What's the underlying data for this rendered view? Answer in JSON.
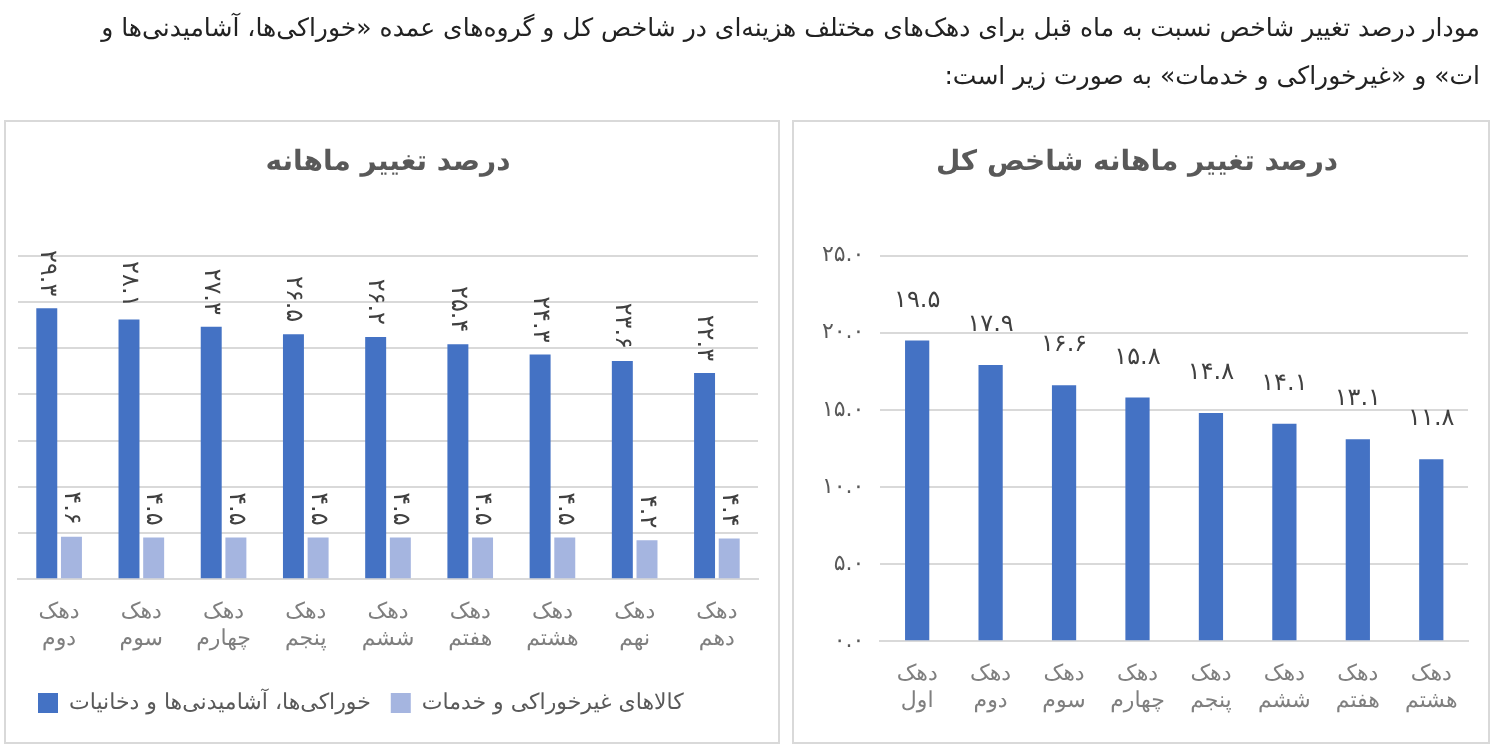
{
  "chart_data": [
    {
      "type": "bar",
      "title": "درصد تغییر ماهانه شاخص کل",
      "annotations": [
        "مودار درصد تغییر شاخص نسبت به ماه قبل برای دهک‌های مختلف هزینه‌ای در شاخص کل و گروه‌های عمده «خوراکی‌ها، آشامیدنی‌ها و",
        "ات» و «غیرخوراکی و خدمات» به صورت زیر است:"
      ],
      "categories": [
        "دهک اول",
        "دهک دوم",
        "دهک سوم",
        "دهک چهارم",
        "دهک پنجم",
        "دهک ششم",
        "دهک هفتم",
        "دهک هشتم"
      ],
      "values": [
        19.5,
        17.9,
        16.6,
        15.8,
        14.8,
        14.1,
        13.1,
        11.8
      ],
      "value_labels": [
        "۱۹.۵",
        "۱۷.۹",
        "۱۶.۶",
        "۱۵.۸",
        "۱۴.۸",
        "۱۴.۱",
        "۱۳.۱",
        "۱۱.۸"
      ],
      "color": "#4472c4",
      "ylim": [
        0,
        25
      ],
      "yticks": [
        {
          "value": 0,
          "label": "۰.۰"
        },
        {
          "value": 5,
          "label": "۵.۰"
        },
        {
          "value": 10,
          "label": "۱۰.۰"
        },
        {
          "value": 15,
          "label": "۱۵.۰"
        },
        {
          "value": 20,
          "label": "۲۰.۰"
        },
        {
          "value": 25,
          "label": "۲۵.۰"
        }
      ],
      "grid": "y",
      "legend": false
    },
    {
      "type": "bar",
      "title": "درصد تغییر ماهانه",
      "categories": [
        "دهک دوم",
        "دهک سوم",
        "دهک چهارم",
        "دهک پنجم",
        "دهک ششم",
        "دهک هفتم",
        "دهک هشتم",
        "دهک نهم",
        "دهک دهم"
      ],
      "series": [
        {
          "name": "خوراکی‌ها، آشامیدنی‌ها و دخانیات",
          "color": "#4472c4",
          "values": [
            29.3,
            28.1,
            27.3,
            26.5,
            26.2,
            25.4,
            24.3,
            23.6,
            22.3
          ],
          "value_labels": [
            "۲۹.۳",
            "۲۸.۱",
            "۲۷.۳",
            "۲۶.۵",
            "۲۶.۲",
            "۲۵.۴",
            "۲۴.۳",
            "۲۳.۶",
            "۲۲.۳"
          ]
        },
        {
          "name": "کالاهای غیرخوراکی و خدمات",
          "color": "#a5b5e0",
          "values": [
            4.6,
            4.5,
            4.5,
            4.5,
            4.5,
            4.5,
            4.5,
            4.2,
            4.4
          ],
          "value_labels": [
            "۴.۶",
            "۴.۵",
            "۴.۵",
            "۴.۵",
            "۴.۵",
            "۴.۵",
            "۴.۵",
            "۴.۲",
            "۴.۴"
          ]
        }
      ],
      "ylim": [
        0,
        35
      ],
      "yticks": [
        {
          "value": 0,
          "label": null
        },
        {
          "value": 5,
          "label": null
        },
        {
          "value": 10,
          "label": null
        },
        {
          "value": 15,
          "label": null
        },
        {
          "value": 20,
          "label": null
        },
        {
          "value": 25,
          "label": null
        },
        {
          "value": 30,
          "label": null
        },
        {
          "value": 35,
          "label": null
        }
      ],
      "tick_labels": "x",
      "grid": "y",
      "legend": "bottom"
    }
  ]
}
